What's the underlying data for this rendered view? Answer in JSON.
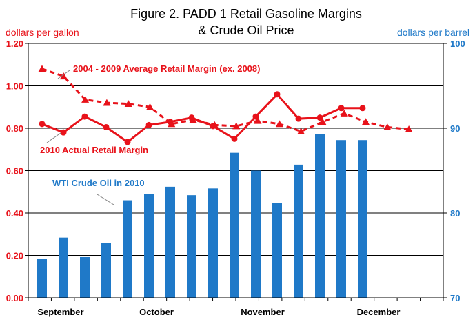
{
  "chart_data": {
    "type": "bar",
    "title_line1": "Figure 2. PADD 1 Retail Gasoline Margins",
    "title_line2": "& Crude Oil Price",
    "ylabel_left": "dollars per gallon",
    "ylabel_right": "dollars per barrel",
    "ylim_left": [
      0,
      1.2
    ],
    "ylim_right": [
      70,
      100
    ],
    "yticks_left": [
      "0.00",
      "0.20",
      "0.40",
      "0.60",
      "0.80",
      "1.00",
      "1.20"
    ],
    "yticks_right": [
      "70",
      "80",
      "90",
      "100"
    ],
    "x_labels": [
      "September",
      "October",
      "November",
      "December"
    ],
    "grid": true,
    "series": [
      {
        "name": "WTI Crude Oil in 2010",
        "type": "bar",
        "axis": "right",
        "color": "#1f79c8",
        "values": [
          74.6,
          77.1,
          74.8,
          76.5,
          81.5,
          82.2,
          83.1,
          82.1,
          82.9,
          87.1,
          85.0,
          81.2,
          85.7,
          89.3,
          88.6,
          88.6
        ]
      },
      {
        "name": "2010 Actual Retail Margin",
        "type": "line",
        "axis": "left",
        "color": "#e8121a",
        "marker": "circle",
        "values": [
          0.82,
          0.78,
          0.855,
          0.805,
          0.735,
          0.815,
          0.83,
          0.85,
          0.81,
          0.75,
          0.855,
          0.96,
          0.845,
          0.85,
          0.895,
          0.895
        ]
      },
      {
        "name": "2004 - 2009 Average Retail Margin (ex. 2008)",
        "type": "line",
        "axis": "left",
        "color": "#e8121a",
        "dashed": true,
        "marker": "triangle",
        "values": [
          1.08,
          1.045,
          0.935,
          0.92,
          0.915,
          0.9,
          0.82,
          0.84,
          0.815,
          0.81,
          0.835,
          0.82,
          0.785,
          0.83,
          0.87,
          0.83,
          0.805,
          0.795
        ]
      }
    ],
    "annotations": {
      "avg_margin": "2004 - 2009 Average Retail Margin (ex. 2008)",
      "actual_margin": "2010 Actual Retail Margin",
      "wti": "WTI Crude Oil in 2010"
    }
  }
}
